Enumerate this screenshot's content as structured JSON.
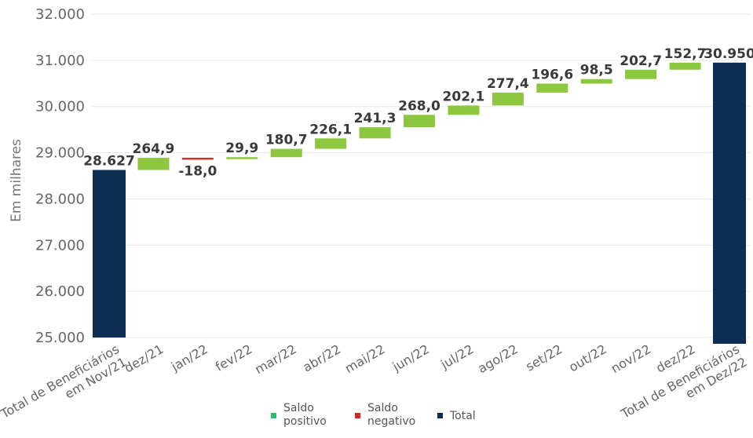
{
  "chart_data": {
    "type": "waterfall",
    "ylabel": "Em milhares",
    "ylim": [
      25000,
      32000
    ],
    "ytick_labels": [
      "25.000",
      "26.000",
      "27.000",
      "28.000",
      "29.000",
      "30.000",
      "31.000",
      "32.000"
    ],
    "yticks": [
      25000,
      26000,
      27000,
      28000,
      29000,
      30000,
      31000,
      32000
    ],
    "grid": true,
    "bars": [
      {
        "category": "Total de Beneficiários em Nov/21",
        "label_lines": [
          "Total de Beneficiários",
          "em Nov/21"
        ],
        "kind": "total",
        "value": 28627,
        "data_label": "28.627"
      },
      {
        "category": "dez/21",
        "label_lines": [
          "dez/21"
        ],
        "kind": "delta",
        "value": 264.9,
        "data_label": "264,9"
      },
      {
        "category": "jan/22",
        "label_lines": [
          "jan/22"
        ],
        "kind": "delta",
        "value": -18.0,
        "data_label": "-18,0"
      },
      {
        "category": "fev/22",
        "label_lines": [
          "fev/22"
        ],
        "kind": "delta",
        "value": 29.9,
        "data_label": "29,9"
      },
      {
        "category": "mar/22",
        "label_lines": [
          "mar/22"
        ],
        "kind": "delta",
        "value": 180.7,
        "data_label": "180,7"
      },
      {
        "category": "abr/22",
        "label_lines": [
          "abr/22"
        ],
        "kind": "delta",
        "value": 226.1,
        "data_label": "226,1"
      },
      {
        "category": "mai/22",
        "label_lines": [
          "mai/22"
        ],
        "kind": "delta",
        "value": 241.3,
        "data_label": "241,3"
      },
      {
        "category": "jun/22",
        "label_lines": [
          "jun/22"
        ],
        "kind": "delta",
        "value": 268.0,
        "data_label": "268,0"
      },
      {
        "category": "jul/22",
        "label_lines": [
          "jul/22"
        ],
        "kind": "delta",
        "value": 202.1,
        "data_label": "202,1"
      },
      {
        "category": "ago/22",
        "label_lines": [
          "ago/22"
        ],
        "kind": "delta",
        "value": 277.4,
        "data_label": "277,4"
      },
      {
        "category": "set/22",
        "label_lines": [
          "set/22"
        ],
        "kind": "delta",
        "value": 196.6,
        "data_label": "196,6"
      },
      {
        "category": "out/22",
        "label_lines": [
          "out/22"
        ],
        "kind": "delta",
        "value": 98.5,
        "data_label": "98,5"
      },
      {
        "category": "nov/22",
        "label_lines": [
          "nov/22"
        ],
        "kind": "delta",
        "value": 202.7,
        "data_label": "202,7"
      },
      {
        "category": "dez/22",
        "label_lines": [
          "dez/22"
        ],
        "kind": "delta",
        "value": 152.7,
        "data_label": "152,7"
      },
      {
        "category": "Total de Beneficiários em Dez/22",
        "label_lines": [
          "Total de Beneficiários",
          "em Dez/22"
        ],
        "kind": "total",
        "value": 30950,
        "data_label": "30.950"
      }
    ],
    "legend": [
      {
        "lines": [
          "Saldo",
          "positivo"
        ],
        "color": "#2ebd6e"
      },
      {
        "lines": [
          "Saldo",
          "negativo"
        ],
        "color": "#d62728"
      },
      {
        "lines": [
          "Total"
        ],
        "color": "#0d2d52"
      }
    ],
    "legend_position": "bottom",
    "colors": {
      "positive": "#8dc63f",
      "negative": "#c0392b",
      "total": "#0d2d52"
    }
  }
}
